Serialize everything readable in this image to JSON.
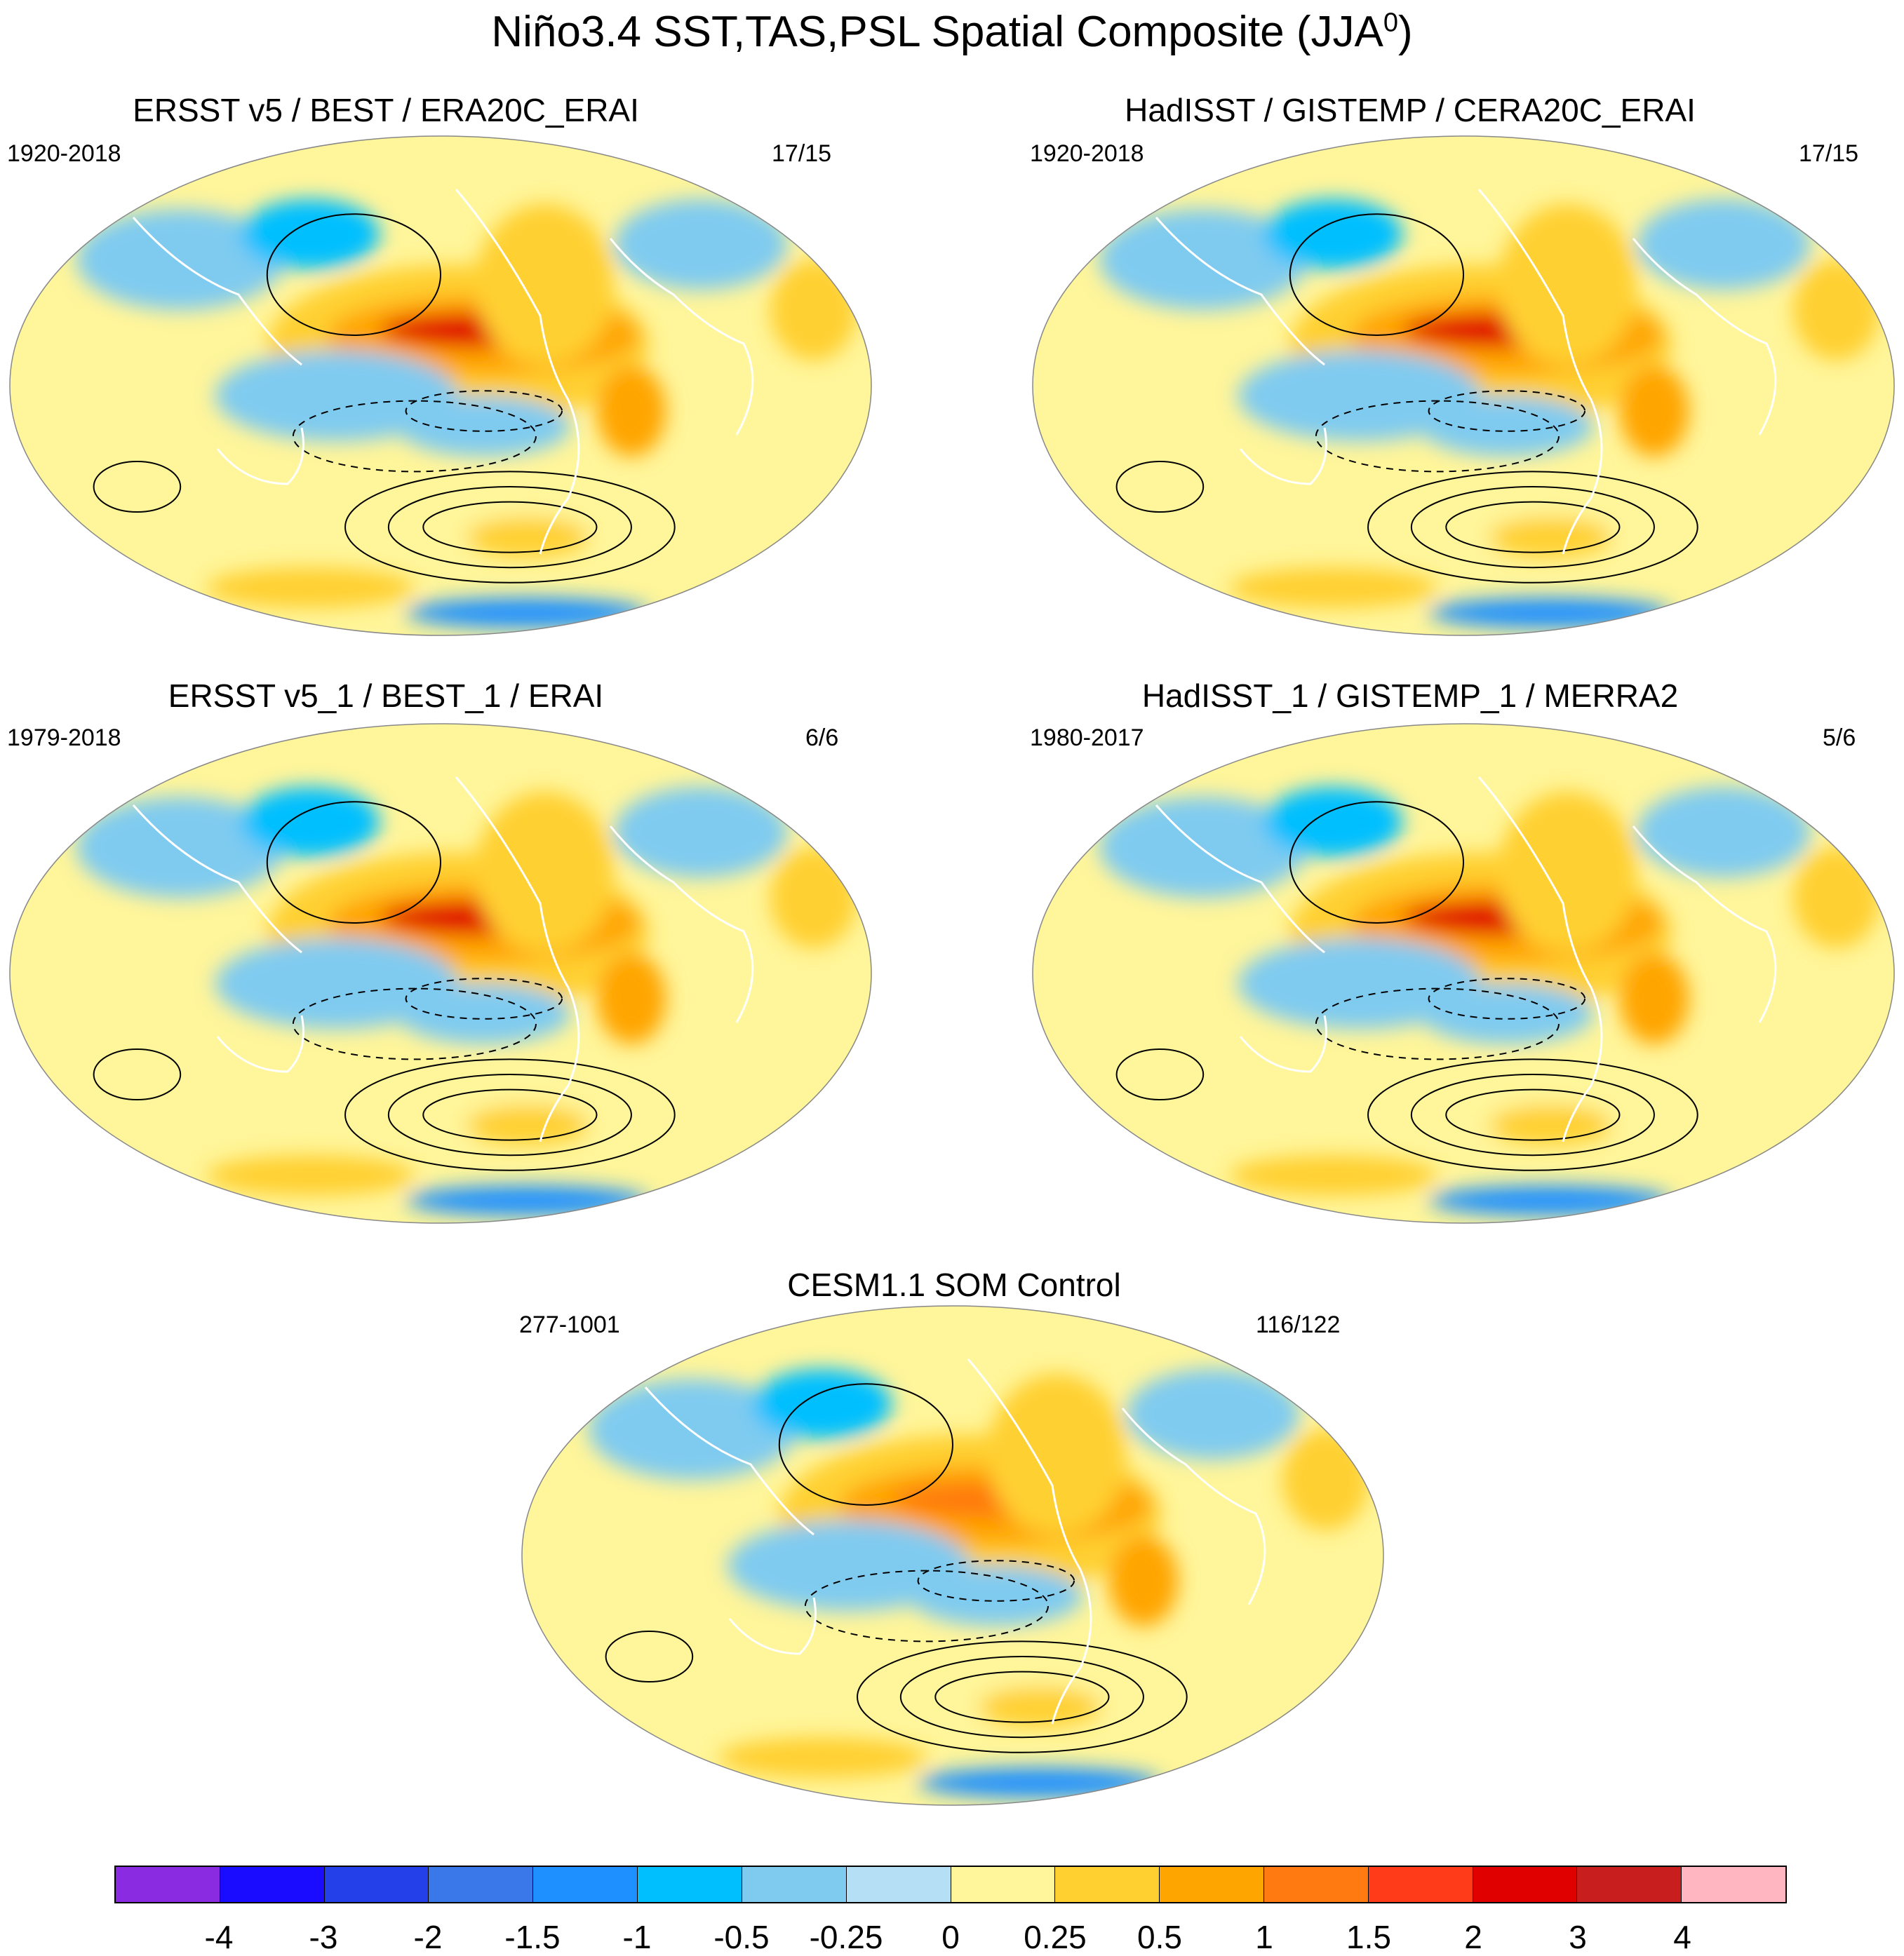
{
  "figure": {
    "title": "Niño3.4 SST,TAS,PSL Spatial Composite (JJA",
    "title_sup": "0",
    "title_close": ")"
  },
  "panels": [
    {
      "id": "p1",
      "title": "ERSST v5 / BEST / ERA20C_ERAI",
      "left_label": "1920-2018",
      "right_label": "17/15"
    },
    {
      "id": "p2",
      "title": "HadISST / GISTEMP / CERA20C_ERAI",
      "left_label": "1920-2018",
      "right_label": "17/15"
    },
    {
      "id": "p3",
      "title": "ERSST v5_1 / BEST_1 / ERAI",
      "left_label": "1979-2018",
      "right_label": "6/6"
    },
    {
      "id": "p4",
      "title": "HadISST_1 / GISTEMP_1 / MERRA2",
      "left_label": "1980-2017",
      "right_label": "5/6"
    },
    {
      "id": "p5",
      "title": "CESM1.1 SOM Control",
      "left_label": "277-1001",
      "right_label": "116/122"
    }
  ],
  "colorbar": {
    "ticks": [
      "-4",
      "-3",
      "-2",
      "-1.5",
      "-1",
      "-0.5",
      "-0.25",
      "0",
      "0.25",
      "0.5",
      "1",
      "1.5",
      "2",
      "3",
      "4"
    ],
    "colors": [
      "#8a2be2",
      "#1a0dff",
      "#2440e8",
      "#3a78ea",
      "#1e90ff",
      "#00bfff",
      "#7fcbf0",
      "#b4dff4",
      "#fff59a",
      "#ffd030",
      "#ffa500",
      "#ff7a10",
      "#ff3b1a",
      "#e00000",
      "#c81e1e",
      "#ffb6c1"
    ]
  },
  "palette": {
    "ocean_base": "#b4dff4",
    "land_outline": "#ffffff",
    "contour": "#000000"
  }
}
